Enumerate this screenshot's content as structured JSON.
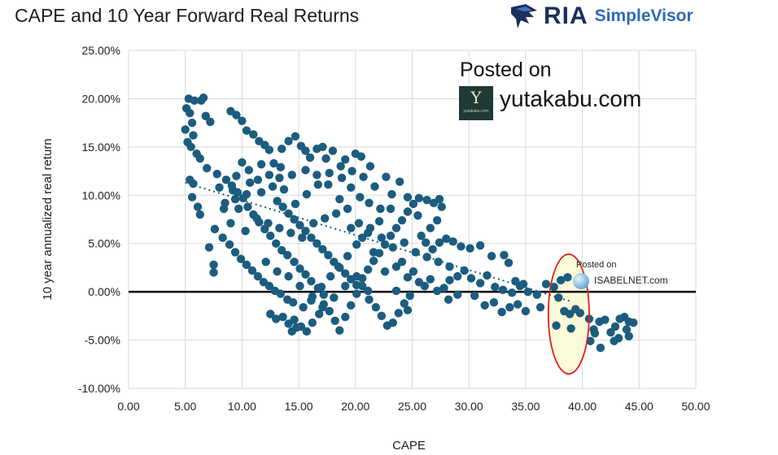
{
  "title": "CAPE and 10 Year Forward Real Returns",
  "logo": {
    "brand": "RIA",
    "product": "SimpleVisor",
    "mark_icon": "eagle-icon"
  },
  "watermark_yutakabu": {
    "line1": "Posted on",
    "site": "yutakabu.com",
    "box_glyph": "Y",
    "box_small": "yutakabu.com"
  },
  "watermark_isabelnet": {
    "line1": "Posted on",
    "site": "ISABELNET.com"
  },
  "colors": {
    "points": "#1b5c7f",
    "trend": "#1b5c7f",
    "zero_line": "#000000",
    "highlight_ring": "#e02020",
    "highlight_fill": "#fbfbd9",
    "grid": "#d9d9d9"
  },
  "chart_data": {
    "type": "scatter",
    "title": "CAPE and 10 Year Forward Real Returns",
    "xlabel": "CAPE",
    "ylabel": "10 year annualized real return",
    "xlim": [
      0,
      50
    ],
    "ylim": [
      -10,
      25
    ],
    "x_ticks": [
      0,
      5,
      10,
      15,
      20,
      25,
      30,
      35,
      40,
      45,
      50
    ],
    "x_tick_labels": [
      "0.00",
      "5.00",
      "10.00",
      "15.00",
      "20.00",
      "25.00",
      "30.00",
      "35.00",
      "40.00",
      "45.00",
      "50.00"
    ],
    "y_ticks": [
      25,
      20,
      15,
      10,
      5,
      0,
      -5,
      -10
    ],
    "y_tick_labels": [
      "25.00%",
      "20.00%",
      "15.00%",
      "10.00%",
      "5.00%",
      "0.00%",
      "-5.00%",
      "-10.00%"
    ],
    "grid": true,
    "trendline": {
      "style": "dotted",
      "from": [
        5,
        11.3
      ],
      "to": [
        39,
        -1.0
      ]
    },
    "zero_line": true,
    "highlight": {
      "shape": "ellipse",
      "center": [
        38.8,
        -2.3
      ],
      "radii": [
        1.8,
        6.2
      ]
    },
    "points": [
      [
        5.0,
        16.8
      ],
      [
        5.1,
        19.0
      ],
      [
        5.3,
        20.0
      ],
      [
        5.4,
        18.5
      ],
      [
        5.6,
        17.5
      ],
      [
        5.2,
        15.5
      ],
      [
        5.5,
        15.0
      ],
      [
        5.8,
        19.8
      ],
      [
        5.7,
        16.2
      ],
      [
        6.0,
        14.3
      ],
      [
        6.4,
        19.8
      ],
      [
        6.6,
        20.1
      ],
      [
        6.8,
        18.2
      ],
      [
        7.2,
        17.6
      ],
      [
        6.3,
        13.8
      ],
      [
        6.9,
        12.8
      ],
      [
        5.4,
        11.6
      ],
      [
        5.7,
        11.2
      ],
      [
        5.6,
        9.8
      ],
      [
        6.1,
        8.8
      ],
      [
        6.3,
        8.0
      ],
      [
        7.1,
        4.6
      ],
      [
        7.5,
        2.0
      ],
      [
        7.5,
        2.8
      ],
      [
        7.6,
        6.5
      ],
      [
        8.0,
        10.8
      ],
      [
        7.8,
        12.2
      ],
      [
        8.5,
        9.2
      ],
      [
        9.0,
        7.1
      ],
      [
        9.5,
        12.0
      ],
      [
        9.2,
        10.5
      ],
      [
        10.0,
        13.4
      ],
      [
        10.6,
        12.6
      ],
      [
        9.0,
        18.7
      ],
      [
        9.5,
        18.3
      ],
      [
        10.0,
        17.7
      ],
      [
        10.4,
        16.7
      ],
      [
        11.0,
        16.3
      ],
      [
        11.5,
        15.6
      ],
      [
        12.0,
        15.2
      ],
      [
        12.4,
        14.7
      ],
      [
        11.7,
        13.2
      ],
      [
        12.8,
        13.3
      ],
      [
        13.3,
        11.8
      ],
      [
        13.5,
        14.8
      ],
      [
        14.1,
        15.6
      ],
      [
        14.7,
        16.1
      ],
      [
        15.2,
        15.1
      ],
      [
        15.6,
        14.6
      ],
      [
        16.0,
        13.9
      ],
      [
        16.6,
        14.8
      ],
      [
        17.1,
        15.0
      ],
      [
        17.4,
        13.8
      ],
      [
        18.0,
        14.6
      ],
      [
        19.1,
        13.7
      ],
      [
        20.0,
        14.3
      ],
      [
        20.5,
        14.0
      ],
      [
        21.3,
        13.0
      ],
      [
        8.6,
        11.6
      ],
      [
        9.1,
        11.0
      ],
      [
        9.6,
        10.3
      ],
      [
        10.1,
        9.7
      ],
      [
        10.5,
        8.8
      ],
      [
        11.0,
        8.0
      ],
      [
        11.5,
        7.2
      ],
      [
        12.0,
        6.5
      ],
      [
        12.5,
        5.8
      ],
      [
        13.0,
        5.0
      ],
      [
        13.5,
        4.3
      ],
      [
        14.0,
        3.8
      ],
      [
        14.6,
        3.1
      ],
      [
        15.1,
        2.4
      ],
      [
        15.6,
        1.8
      ],
      [
        16.1,
        1.1
      ],
      [
        16.7,
        0.4
      ],
      [
        17.2,
        -0.3
      ],
      [
        8.3,
        5.6
      ],
      [
        8.9,
        4.9
      ],
      [
        9.4,
        4.1
      ],
      [
        9.9,
        3.4
      ],
      [
        10.4,
        2.8
      ],
      [
        10.9,
        2.2
      ],
      [
        11.4,
        1.6
      ],
      [
        11.9,
        1.0
      ],
      [
        12.4,
        0.6
      ],
      [
        12.9,
        0.1
      ],
      [
        13.4,
        -0.2
      ],
      [
        14.0,
        -0.8
      ],
      [
        14.5,
        -1.1
      ],
      [
        12.5,
        -2.3
      ],
      [
        13.0,
        -2.8
      ],
      [
        13.6,
        -2.6
      ],
      [
        14.1,
        -3.3
      ],
      [
        14.6,
        -2.9
      ],
      [
        15.2,
        -3.6
      ],
      [
        15.7,
        -4.1
      ],
      [
        14.4,
        -4.1
      ],
      [
        14.8,
        -3.7
      ],
      [
        16.2,
        -3.2
      ],
      [
        16.8,
        -2.3
      ],
      [
        17.2,
        -1.3
      ],
      [
        17.7,
        -2.0
      ],
      [
        18.2,
        -3.0
      ],
      [
        18.6,
        -4.0
      ],
      [
        19.1,
        -2.6
      ],
      [
        19.6,
        -1.4
      ],
      [
        20.1,
        -0.2
      ],
      [
        20.6,
        0.6
      ],
      [
        21.2,
        -0.8
      ],
      [
        21.8,
        -1.6
      ],
      [
        22.3,
        -2.5
      ],
      [
        22.8,
        -3.5
      ],
      [
        23.3,
        -3.2
      ],
      [
        23.8,
        -2.2
      ],
      [
        24.3,
        -1.2
      ],
      [
        24.8,
        -0.4
      ],
      [
        13.1,
        9.4
      ],
      [
        13.6,
        8.8
      ],
      [
        14.1,
        8.1
      ],
      [
        14.6,
        7.5
      ],
      [
        15.1,
        6.9
      ],
      [
        15.6,
        6.3
      ],
      [
        16.1,
        5.6
      ],
      [
        16.6,
        5.0
      ],
      [
        17.1,
        4.4
      ],
      [
        17.6,
        3.8
      ],
      [
        18.1,
        3.1
      ],
      [
        18.6,
        2.5
      ],
      [
        19.1,
        1.9
      ],
      [
        19.6,
        1.3
      ],
      [
        20.1,
        0.7
      ],
      [
        20.6,
        1.4
      ],
      [
        21.1,
        2.3
      ],
      [
        21.6,
        3.2
      ],
      [
        22.1,
        4.0
      ],
      [
        22.6,
        4.9
      ],
      [
        23.1,
        5.8
      ],
      [
        23.6,
        6.6
      ],
      [
        24.1,
        7.4
      ],
      [
        24.6,
        8.3
      ],
      [
        25.1,
        9.1
      ],
      [
        25.6,
        9.7
      ],
      [
        26.3,
        9.5
      ],
      [
        26.9,
        9.2
      ],
      [
        27.4,
        9.6
      ],
      [
        27.6,
        8.8
      ],
      [
        27.2,
        7.4
      ],
      [
        26.6,
        6.6
      ],
      [
        25.8,
        5.8
      ],
      [
        26.2,
        5.1
      ],
      [
        26.8,
        4.4
      ],
      [
        27.4,
        5.1
      ],
      [
        28.0,
        5.5
      ],
      [
        28.6,
        5.2
      ],
      [
        29.3,
        4.7
      ],
      [
        30.1,
        4.5
      ],
      [
        31.0,
        4.8
      ],
      [
        32.0,
        3.7
      ],
      [
        33.1,
        3.8
      ],
      [
        34.1,
        1.1
      ],
      [
        34.8,
        0.8
      ],
      [
        33.5,
        3.0
      ],
      [
        23.6,
        2.6
      ],
      [
        24.1,
        3.1
      ],
      [
        24.6,
        1.5
      ],
      [
        25.1,
        2.1
      ],
      [
        25.6,
        1.0
      ],
      [
        26.1,
        0.6
      ],
      [
        26.6,
        1.3
      ],
      [
        27.2,
        0.1
      ],
      [
        27.8,
        0.4
      ],
      [
        28.3,
        1.2
      ],
      [
        29.0,
        1.6
      ],
      [
        29.6,
        2.2
      ],
      [
        30.2,
        1.4
      ],
      [
        31.0,
        0.9
      ],
      [
        31.6,
        1.7
      ],
      [
        32.3,
        0.5
      ],
      [
        33.0,
        0.2
      ],
      [
        33.8,
        -0.1
      ],
      [
        34.5,
        0.6
      ],
      [
        35.2,
        0.0
      ],
      [
        36.0,
        -0.3
      ],
      [
        36.8,
        0.8
      ],
      [
        37.5,
        0.5
      ],
      [
        38.1,
        1.2
      ],
      [
        38.7,
        1.5
      ],
      [
        37.9,
        -0.6
      ],
      [
        38.4,
        -2.0
      ],
      [
        38.9,
        -2.3
      ],
      [
        39.4,
        -1.8
      ],
      [
        39.0,
        -3.8
      ],
      [
        37.7,
        -3.5
      ],
      [
        39.8,
        -2.2
      ],
      [
        40.6,
        -2.8
      ],
      [
        41.0,
        -3.9
      ],
      [
        41.5,
        -3.1
      ],
      [
        42.0,
        -2.9
      ],
      [
        42.5,
        -4.2
      ],
      [
        42.9,
        -3.6
      ],
      [
        43.3,
        -2.8
      ],
      [
        43.7,
        -2.6
      ],
      [
        44.1,
        -3.1
      ],
      [
        44.5,
        -3.2
      ],
      [
        43.9,
        -3.9
      ],
      [
        43.2,
        -4.8
      ],
      [
        42.8,
        -5.1
      ],
      [
        41.6,
        -5.8
      ],
      [
        40.7,
        -5.1
      ],
      [
        41.1,
        -4.3
      ],
      [
        44.1,
        -4.6
      ],
      [
        30.5,
        -0.4
      ],
      [
        31.4,
        -1.4
      ],
      [
        32.2,
        -1.1
      ],
      [
        32.9,
        -2.1
      ],
      [
        33.6,
        -1.6
      ],
      [
        34.3,
        -1.3
      ],
      [
        35.0,
        -2.0
      ],
      [
        36.3,
        -1.6
      ],
      [
        28.2,
        -0.8
      ],
      [
        29.0,
        -0.3
      ],
      [
        25.5,
        7.9
      ],
      [
        24.6,
        9.8
      ],
      [
        23.1,
        8.6
      ],
      [
        22.1,
        7.3
      ],
      [
        21.1,
        6.1
      ],
      [
        20.1,
        4.9
      ],
      [
        19.3,
        3.7
      ],
      [
        18.5,
        2.6
      ],
      [
        17.8,
        1.6
      ],
      [
        17.0,
        0.5
      ],
      [
        16.2,
        -0.5
      ],
      [
        15.4,
        -1.6
      ],
      [
        18.8,
        11.8
      ],
      [
        19.6,
        10.8
      ],
      [
        20.4,
        9.8
      ],
      [
        21.2,
        9.2
      ],
      [
        22.2,
        8.6
      ],
      [
        23.2,
        10.1
      ],
      [
        23.9,
        11.4
      ],
      [
        22.7,
        11.9
      ],
      [
        21.7,
        10.9
      ],
      [
        20.7,
        11.9
      ],
      [
        19.7,
        12.5
      ],
      [
        18.7,
        13.0
      ],
      [
        17.7,
        12.3
      ],
      [
        16.7,
        11.1
      ],
      [
        15.7,
        10.1
      ],
      [
        14.7,
        9.1
      ],
      [
        13.7,
        10.6
      ],
      [
        12.7,
        10.9
      ],
      [
        11.7,
        10.3
      ],
      [
        10.7,
        11.3
      ],
      [
        9.7,
        8.6
      ],
      [
        10.3,
        6.3
      ],
      [
        11.3,
        7.6
      ],
      [
        12.3,
        7.1
      ],
      [
        13.3,
        6.6
      ],
      [
        14.3,
        6.1
      ],
      [
        15.3,
        5.6
      ],
      [
        16.3,
        7.1
      ],
      [
        17.3,
        7.6
      ],
      [
        18.3,
        8.1
      ],
      [
        19.3,
        8.6
      ],
      [
        20.3,
        7.1
      ],
      [
        21.3,
        6.6
      ],
      [
        22.3,
        5.6
      ],
      [
        23.3,
        4.6
      ],
      [
        24.3,
        5.1
      ],
      [
        25.3,
        4.1
      ],
      [
        26.3,
        3.6
      ],
      [
        27.3,
        3.1
      ],
      [
        28.3,
        2.6
      ],
      [
        15.6,
        12.6
      ],
      [
        16.6,
        12.1
      ],
      [
        17.6,
        11.1
      ],
      [
        18.6,
        9.6
      ],
      [
        19.6,
        6.6
      ],
      [
        20.6,
        5.6
      ],
      [
        21.6,
        4.1
      ],
      [
        22.6,
        2.1
      ],
      [
        23.6,
        0.1
      ],
      [
        24.6,
        -1.9
      ],
      [
        14.4,
        12.1
      ],
      [
        13.4,
        12.9
      ],
      [
        12.4,
        12.1
      ],
      [
        11.4,
        11.6
      ],
      [
        10.4,
        10.1
      ],
      [
        9.4,
        9.6
      ],
      [
        8.4,
        8.6
      ],
      [
        12.1,
        3.1
      ],
      [
        13.1,
        2.1
      ],
      [
        14.1,
        1.6
      ],
      [
        15.1,
        0.6
      ],
      [
        16.1,
        -0.9
      ],
      [
        17.1,
        -1.6
      ],
      [
        18.1,
        -0.6
      ],
      [
        19.1,
        0.6
      ],
      [
        20.1,
        1.6
      ],
      [
        21.1,
        0.1
      ]
    ]
  }
}
